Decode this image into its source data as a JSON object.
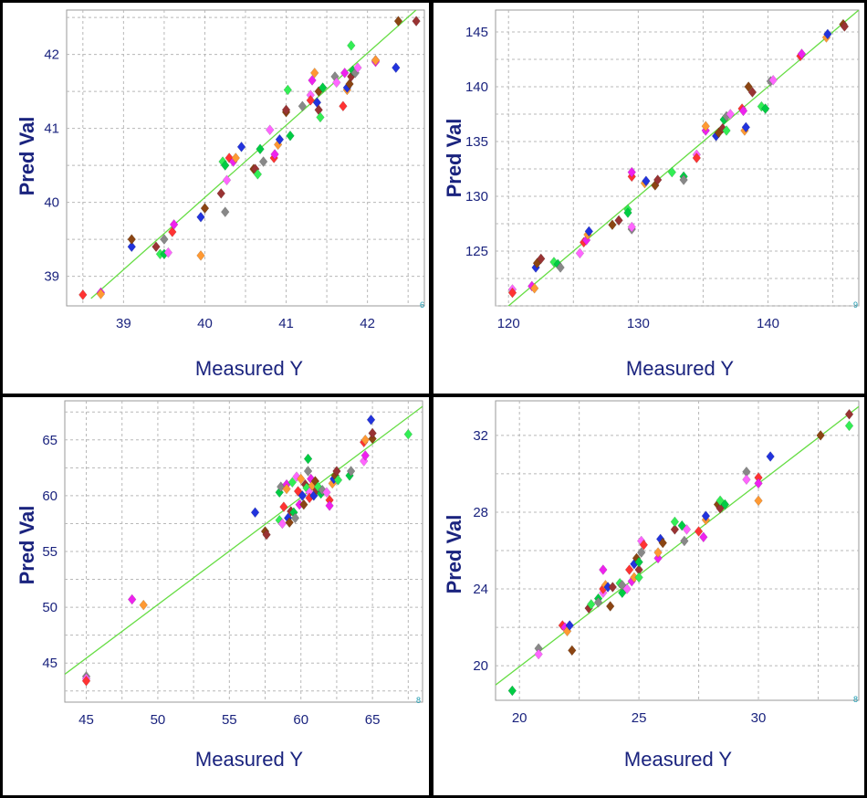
{
  "colors": {
    "grid": "#b8b8b8",
    "axis_text": "#1a237e",
    "fit_line": "#66dd44",
    "marker_palette": [
      "#ff3333",
      "#2233dd",
      "#33ee55",
      "#ff66ff",
      "#ff9933",
      "#993333",
      "#888888",
      "#ee22ee",
      "#8b4513",
      "#00cc44"
    ]
  },
  "chart_data": [
    {
      "type": "scatter",
      "title": "",
      "xlabel": "Measured Y",
      "ylabel": "Pred Val",
      "xlim": [
        38.3,
        42.7
      ],
      "ylim": [
        38.6,
        42.6
      ],
      "xticks": [
        39,
        40,
        41,
        42
      ],
      "yticks": [
        39,
        40,
        41,
        42
      ],
      "corner_mark": "6",
      "fit_line": [
        [
          38.6,
          38.7
        ],
        [
          42.7,
          42.7
        ]
      ],
      "points": [
        [
          38.5,
          38.75
        ],
        [
          38.72,
          38.78
        ],
        [
          38.72,
          38.76
        ],
        [
          39.1,
          39.4
        ],
        [
          39.1,
          39.5
        ],
        [
          39.4,
          39.4
        ],
        [
          39.45,
          39.3
        ],
        [
          39.5,
          39.3
        ],
        [
          39.5,
          39.5
        ],
        [
          39.55,
          39.32
        ],
        [
          39.6,
          39.6
        ],
        [
          39.62,
          39.7
        ],
        [
          39.95,
          39.28
        ],
        [
          39.95,
          39.8
        ],
        [
          40.0,
          39.92
        ],
        [
          40.2,
          40.12
        ],
        [
          40.22,
          40.55
        ],
        [
          40.25,
          40.5
        ],
        [
          40.25,
          39.87
        ],
        [
          40.27,
          40.3
        ],
        [
          40.3,
          40.6
        ],
        [
          40.35,
          40.55
        ],
        [
          40.38,
          40.6
        ],
        [
          40.45,
          40.75
        ],
        [
          40.6,
          40.45
        ],
        [
          40.62,
          40.45
        ],
        [
          40.65,
          40.38
        ],
        [
          40.68,
          40.72
        ],
        [
          40.72,
          40.55
        ],
        [
          40.8,
          40.98
        ],
        [
          40.85,
          40.6
        ],
        [
          40.86,
          40.65
        ],
        [
          40.9,
          40.78
        ],
        [
          40.92,
          40.85
        ],
        [
          41.0,
          41.22
        ],
        [
          41.0,
          41.25
        ],
        [
          41.02,
          41.52
        ],
        [
          41.05,
          40.9
        ],
        [
          41.2,
          41.3
        ],
        [
          41.3,
          41.45
        ],
        [
          41.3,
          41.38
        ],
        [
          41.32,
          41.65
        ],
        [
          41.35,
          41.75
        ],
        [
          41.38,
          41.35
        ],
        [
          41.4,
          41.5
        ],
        [
          41.4,
          41.25
        ],
        [
          41.42,
          41.15
        ],
        [
          41.45,
          41.55
        ],
        [
          41.6,
          41.7
        ],
        [
          41.62,
          41.62
        ],
        [
          41.7,
          41.3
        ],
        [
          41.72,
          41.75
        ],
        [
          41.75,
          41.52
        ],
        [
          41.75,
          41.55
        ],
        [
          41.78,
          41.6
        ],
        [
          41.8,
          41.7
        ],
        [
          41.8,
          42.12
        ],
        [
          41.82,
          41.78
        ],
        [
          41.85,
          41.75
        ],
        [
          41.88,
          41.82
        ],
        [
          42.1,
          41.92
        ],
        [
          42.1,
          41.9
        ],
        [
          42.1,
          41.92
        ],
        [
          42.35,
          41.82
        ],
        [
          42.38,
          42.45
        ],
        [
          42.6,
          42.45
        ]
      ]
    },
    {
      "type": "scatter",
      "title": "",
      "xlabel": "Measured Y",
      "ylabel": "Pred Val",
      "xlim": [
        119,
        147
      ],
      "ylim": [
        120,
        147
      ],
      "xticks": [
        120,
        130,
        140
      ],
      "yticks": [
        125,
        130,
        135,
        140,
        145
      ],
      "corner_mark": "9",
      "fit_line": [
        [
          119.5,
          119.5
        ],
        [
          147,
          147
        ]
      ],
      "points": [
        [
          120.3,
          121.5
        ],
        [
          120.3,
          121.2
        ],
        [
          121.8,
          121.8
        ],
        [
          122.0,
          121.6
        ],
        [
          122.1,
          123.5
        ],
        [
          122.2,
          123.9
        ],
        [
          122.5,
          124.3
        ],
        [
          123.5,
          124.0
        ],
        [
          123.8,
          123.8
        ],
        [
          124.0,
          123.5
        ],
        [
          125.5,
          124.8
        ],
        [
          125.8,
          125.8
        ],
        [
          126.0,
          126.0
        ],
        [
          126.1,
          126.5
        ],
        [
          126.2,
          126.8
        ],
        [
          128.0,
          127.4
        ],
        [
          128.5,
          127.8
        ],
        [
          129.2,
          128.8
        ],
        [
          129.2,
          128.5
        ],
        [
          129.5,
          127.0
        ],
        [
          129.5,
          127.2
        ],
        [
          129.5,
          131.8
        ],
        [
          129.5,
          132.2
        ],
        [
          130.5,
          131.2
        ],
        [
          130.6,
          131.4
        ],
        [
          131.3,
          131.0
        ],
        [
          131.5,
          131.5
        ],
        [
          132.6,
          132.2
        ],
        [
          133.5,
          131.8
        ],
        [
          133.5,
          131.5
        ],
        [
          134.5,
          133.8
        ],
        [
          134.5,
          133.5
        ],
        [
          135.2,
          136.0
        ],
        [
          135.2,
          136.4
        ],
        [
          136.0,
          135.5
        ],
        [
          136.2,
          135.8
        ],
        [
          136.5,
          136.2
        ],
        [
          136.8,
          136.0
        ],
        [
          136.6,
          137.0
        ],
        [
          136.8,
          137.3
        ],
        [
          137.1,
          137.5
        ],
        [
          138.0,
          138.0
        ],
        [
          138.1,
          137.8
        ],
        [
          138.2,
          136.0
        ],
        [
          138.3,
          136.3
        ],
        [
          138.5,
          140.0
        ],
        [
          138.8,
          139.5
        ],
        [
          139.5,
          138.2
        ],
        [
          139.8,
          138.0
        ],
        [
          140.2,
          140.5
        ],
        [
          140.4,
          140.6
        ],
        [
          142.5,
          142.8
        ],
        [
          142.6,
          143.0
        ],
        [
          144.5,
          144.5
        ],
        [
          144.6,
          144.8
        ],
        [
          145.8,
          145.7
        ],
        [
          145.9,
          145.5
        ]
      ]
    },
    {
      "type": "scatter",
      "title": "",
      "xlabel": "Measured Y",
      "ylabel": "Pred Val",
      "xlim": [
        43.5,
        68.5
      ],
      "ylim": [
        41.5,
        68.5
      ],
      "xticks": [
        45,
        50,
        55,
        60,
        65
      ],
      "yticks": [
        45,
        50,
        55,
        60,
        65
      ],
      "corner_mark": "8",
      "fit_line": [
        [
          43.5,
          44.0
        ],
        [
          68.5,
          68.0
        ]
      ],
      "points": [
        [
          45.0,
          43.8
        ],
        [
          45.0,
          43.6
        ],
        [
          45.0,
          43.4
        ],
        [
          48.2,
          50.7
        ],
        [
          49.0,
          50.2
        ],
        [
          56.8,
          58.5
        ],
        [
          57.5,
          56.8
        ],
        [
          57.6,
          56.5
        ],
        [
          58.5,
          57.8
        ],
        [
          58.5,
          60.3
        ],
        [
          58.6,
          60.8
        ],
        [
          58.7,
          57.5
        ],
        [
          58.8,
          59.0
        ],
        [
          59.0,
          61.0
        ],
        [
          59.0,
          60.6
        ],
        [
          59.1,
          58.0
        ],
        [
          59.2,
          57.6
        ],
        [
          59.3,
          58.6
        ],
        [
          59.4,
          61.2
        ],
        [
          59.5,
          58.5
        ],
        [
          59.6,
          58.0
        ],
        [
          59.7,
          61.7
        ],
        [
          59.8,
          60.4
        ],
        [
          59.9,
          59.2
        ],
        [
          60.0,
          61.5
        ],
        [
          60.1,
          60.0
        ],
        [
          60.2,
          59.2
        ],
        [
          60.3,
          61.0
        ],
        [
          60.4,
          60.7
        ],
        [
          60.5,
          63.3
        ],
        [
          60.5,
          62.2
        ],
        [
          60.6,
          60.3
        ],
        [
          60.6,
          59.8
        ],
        [
          60.7,
          61.5
        ],
        [
          60.8,
          60.9
        ],
        [
          60.9,
          60.0
        ],
        [
          61.0,
          61.3
        ],
        [
          61.1,
          60.5
        ],
        [
          61.2,
          60.8
        ],
        [
          61.4,
          60.2
        ],
        [
          61.5,
          60.5
        ],
        [
          61.8,
          60.3
        ],
        [
          62.0,
          59.6
        ],
        [
          62.0,
          59.1
        ],
        [
          62.2,
          61.1
        ],
        [
          62.3,
          61.5
        ],
        [
          62.4,
          61.8
        ],
        [
          62.5,
          62.2
        ],
        [
          62.6,
          61.4
        ],
        [
          63.4,
          61.8
        ],
        [
          63.5,
          62.2
        ],
        [
          64.4,
          63.1
        ],
        [
          64.4,
          64.8
        ],
        [
          64.5,
          63.6
        ],
        [
          64.5,
          65.0
        ],
        [
          64.9,
          66.8
        ],
        [
          65.0,
          65.1
        ],
        [
          65.0,
          65.6
        ],
        [
          67.5,
          65.5
        ]
      ]
    },
    {
      "type": "scatter",
      "title": "",
      "xlabel": "Measured Y",
      "ylabel": "Pred Val",
      "xlim": [
        19,
        34.2
      ],
      "ylim": [
        18.2,
        33.8
      ],
      "xticks": [
        20,
        25,
        30
      ],
      "yticks": [
        20,
        24,
        28,
        32
      ],
      "corner_mark": "8",
      "fit_line": [
        [
          19,
          19.0
        ],
        [
          34.2,
          33.5
        ]
      ],
      "points": [
        [
          19.7,
          18.7
        ],
        [
          20.8,
          20.9
        ],
        [
          20.8,
          20.6
        ],
        [
          21.8,
          22.1
        ],
        [
          21.9,
          22.0
        ],
        [
          22.0,
          21.8
        ],
        [
          22.1,
          22.1
        ],
        [
          22.2,
          20.8
        ],
        [
          22.9,
          23.0
        ],
        [
          23.0,
          23.2
        ],
        [
          23.3,
          23.5
        ],
        [
          23.3,
          23.3
        ],
        [
          23.5,
          23.8
        ],
        [
          23.5,
          24.0
        ],
        [
          23.5,
          25.0
        ],
        [
          23.6,
          24.2
        ],
        [
          23.7,
          24.1
        ],
        [
          23.8,
          23.1
        ],
        [
          23.9,
          24.1
        ],
        [
          24.2,
          24.3
        ],
        [
          24.3,
          23.8
        ],
        [
          24.3,
          24.2
        ],
        [
          24.5,
          24.0
        ],
        [
          24.6,
          25.0
        ],
        [
          24.7,
          24.4
        ],
        [
          24.8,
          24.6
        ],
        [
          24.8,
          25.3
        ],
        [
          24.9,
          25.6
        ],
        [
          25.0,
          25.0
        ],
        [
          25.0,
          24.6
        ],
        [
          25.0,
          25.4
        ],
        [
          25.1,
          25.9
        ],
        [
          25.1,
          26.5
        ],
        [
          25.2,
          26.3
        ],
        [
          25.8,
          25.6
        ],
        [
          25.8,
          25.9
        ],
        [
          25.9,
          26.6
        ],
        [
          26.0,
          26.4
        ],
        [
          26.5,
          27.1
        ],
        [
          26.5,
          27.5
        ],
        [
          26.8,
          27.3
        ],
        [
          26.9,
          26.5
        ],
        [
          27.0,
          27.1
        ],
        [
          27.5,
          27.0
        ],
        [
          27.7,
          26.7
        ],
        [
          27.8,
          27.6
        ],
        [
          27.8,
          27.8
        ],
        [
          28.3,
          28.4
        ],
        [
          28.4,
          28.2
        ],
        [
          28.4,
          28.6
        ],
        [
          28.6,
          28.4
        ],
        [
          29.5,
          30.1
        ],
        [
          29.5,
          29.7
        ],
        [
          30.0,
          29.8
        ],
        [
          30.0,
          29.5
        ],
        [
          30.0,
          28.6
        ],
        [
          30.5,
          30.9
        ],
        [
          32.6,
          32.0
        ],
        [
          33.8,
          33.1
        ],
        [
          33.8,
          32.5
        ]
      ]
    }
  ]
}
